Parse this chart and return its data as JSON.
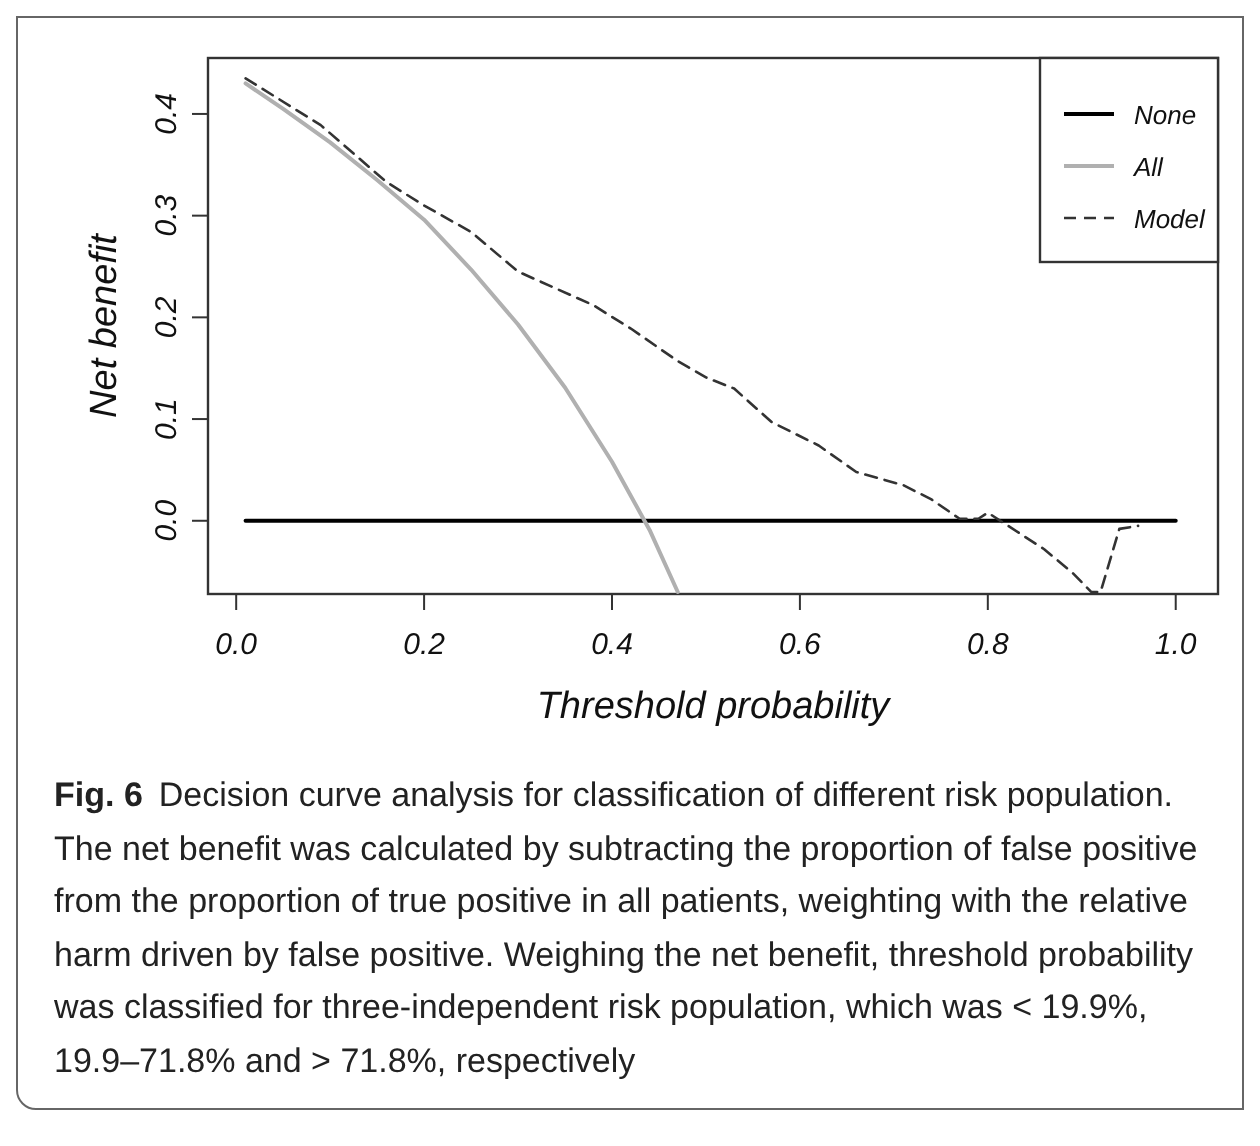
{
  "chart_data": {
    "type": "line",
    "xlabel": "Threshold probability",
    "ylabel": "Net benefit",
    "xlim": [
      -0.03,
      1.045
    ],
    "ylim": [
      -0.072,
      0.455
    ],
    "xticks": [
      {
        "value": 0,
        "label": "0.0"
      },
      0.2,
      0.4,
      0.6,
      0.8,
      {
        "value": 1,
        "label": "1.0"
      }
    ],
    "yticks": [
      {
        "value": 0,
        "label": "0.0"
      },
      0.1,
      0.2,
      0.3,
      0.4
    ],
    "grid": false,
    "legend": "top right",
    "marker": "none",
    "series": [
      {
        "name": "None",
        "color": "#000000",
        "line_style": "solid",
        "x": [
          0.01,
          1.0
        ],
        "values": [
          0,
          0
        ]
      },
      {
        "name": "All",
        "color": "#b0b0b0",
        "line_style": "solid",
        "x": [
          0.01,
          0.05,
          0.1,
          0.15,
          0.2,
          0.25,
          0.3,
          0.35,
          0.4,
          0.44,
          0.47
        ],
        "values": [
          0.43,
          0.405,
          0.372,
          0.335,
          0.296,
          0.247,
          0.193,
          0.131,
          0.058,
          -0.009,
          -0.07
        ]
      },
      {
        "name": "Model",
        "color": "#333333",
        "line_style": "dashed",
        "x": [
          0.01,
          0.09,
          0.16,
          0.2,
          0.25,
          0.3,
          0.38,
          0.42,
          0.47,
          0.5,
          0.53,
          0.57,
          0.62,
          0.66,
          0.71,
          0.74,
          0.77,
          0.79,
          0.8,
          0.86,
          0.89,
          0.91,
          0.92,
          0.94,
          0.96
        ],
        "values": [
          0.435,
          0.389,
          0.333,
          0.31,
          0.284,
          0.245,
          0.212,
          0.189,
          0.157,
          0.141,
          0.13,
          0.097,
          0.074,
          0.048,
          0.035,
          0.021,
          0.002,
          0.002,
          0.008,
          -0.028,
          -0.051,
          -0.07,
          -0.07,
          -0.008,
          -0.005
        ]
      }
    ],
    "annotations": [
      "Fig. 6",
      "Decision curve analysis for classification of different risk population. The net benefit was calculated by subtracting the proportion of false positive from the proportion of true positive in all patients, weighting with the relative harm driven by false positive. Weighing the net benefit, threshold probability was classified for three-independent risk population, which was < 19.9%, 19.9–71.8% and > 71.8%, respectively"
    ]
  }
}
